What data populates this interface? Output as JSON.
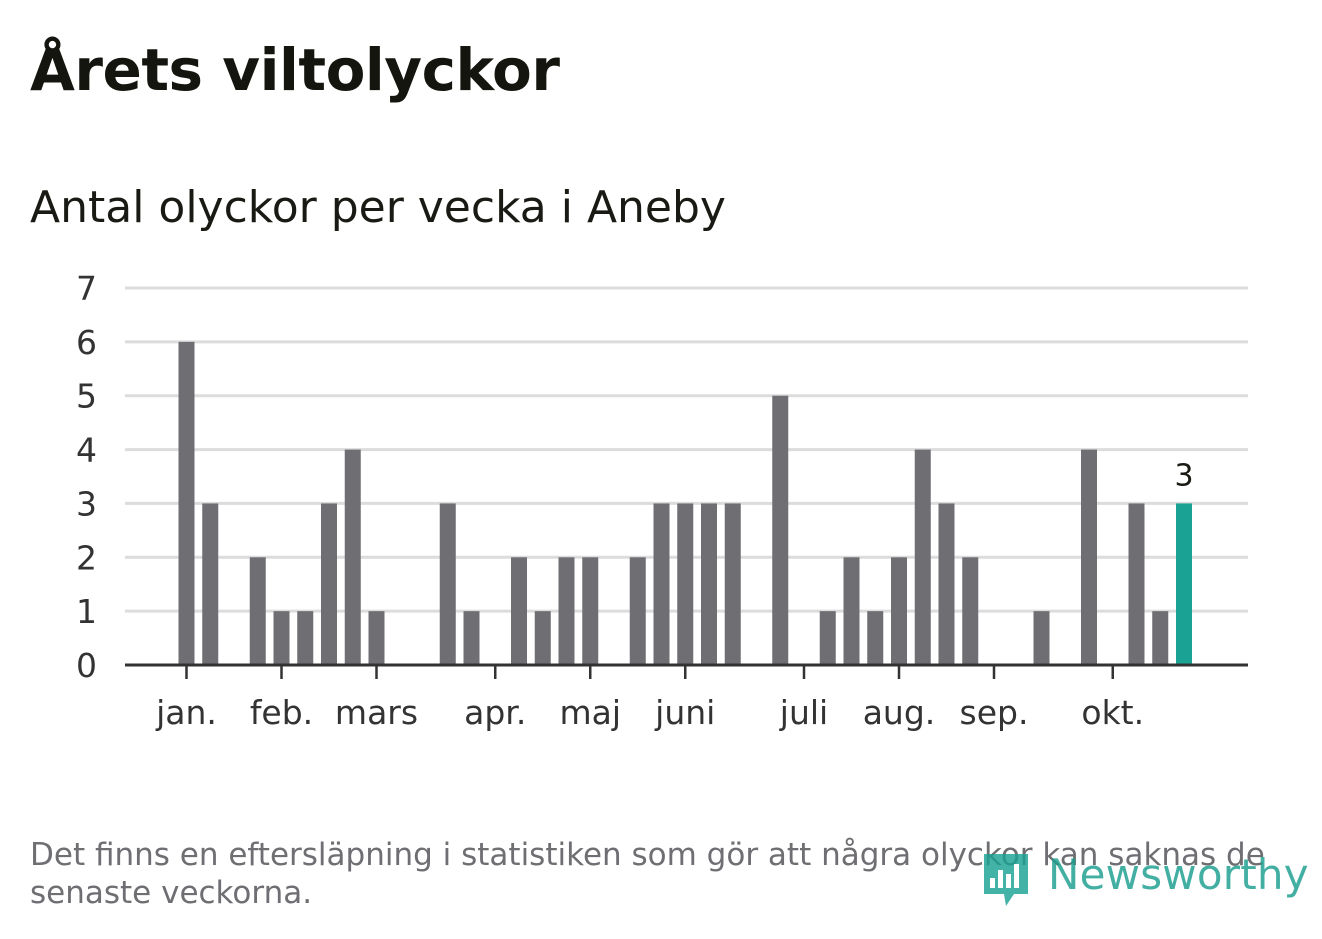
{
  "title": "Årets viltolyckor",
  "subtitle": "Antal olyckor per vecka i Aneby",
  "footnote": "Det finns en eftersläpning i statistiken som gör att några olyckor kan saknas de senaste veckorna.",
  "logo": {
    "text": "Newsworthy",
    "icon": "bar-chart-speech-bubble-icon"
  },
  "colors": {
    "bar": "#6f6e72",
    "highlight": "#1aa394",
    "grid": "#dcdcdc",
    "axis": "#333333",
    "text": "#1a1a14"
  },
  "chart_data": {
    "type": "bar",
    "title": "Antal olyckor per vecka i Aneby",
    "ylim": [
      0,
      7
    ],
    "yticks": [
      0,
      1,
      2,
      3,
      4,
      5,
      6,
      7
    ],
    "grid": true,
    "values": [
      0,
      6,
      3,
      0,
      2,
      1,
      1,
      3,
      4,
      1,
      0,
      0,
      3,
      1,
      0,
      2,
      1,
      2,
      2,
      0,
      2,
      3,
      3,
      3,
      3,
      0,
      5,
      0,
      1,
      2,
      1,
      2,
      4,
      3,
      2,
      0,
      0,
      1,
      0,
      4,
      0,
      3,
      1,
      3
    ],
    "highlight_index": 43,
    "highlight_label": "3",
    "month_labels": [
      {
        "label": "jan.",
        "week": 1
      },
      {
        "label": "feb.",
        "week": 5
      },
      {
        "label": "mars",
        "week": 9
      },
      {
        "label": "apr.",
        "week": 14
      },
      {
        "label": "maj",
        "week": 18
      },
      {
        "label": "juni",
        "week": 22
      },
      {
        "label": "juli",
        "week": 27
      },
      {
        "label": "aug.",
        "week": 31
      },
      {
        "label": "sep.",
        "week": 35
      },
      {
        "label": "okt.",
        "week": 40
      }
    ]
  }
}
